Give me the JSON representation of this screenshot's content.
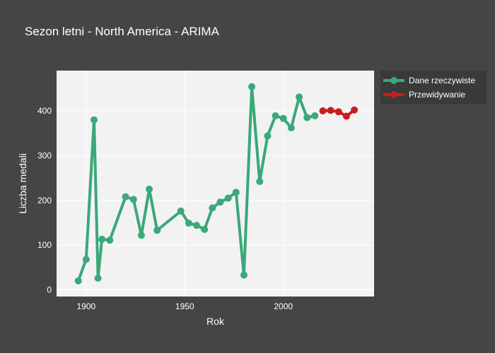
{
  "chart_data": {
    "type": "line",
    "title": "Sezon letni - North America - ARIMA",
    "xlabel": "Rok",
    "ylabel": "Liczba medali",
    "xlim": [
      1885,
      2046
    ],
    "ylim": [
      -15,
      490
    ],
    "x_ticks": [
      1900,
      1950,
      2000
    ],
    "y_ticks": [
      0,
      100,
      200,
      300,
      400
    ],
    "grid": true,
    "legend_position": "top-right",
    "series": [
      {
        "name": "Dane rzeczywiste",
        "color": "#3aa87a",
        "x": [
          1896,
          1900,
          1904,
          1906,
          1908,
          1912,
          1920,
          1924,
          1928,
          1932,
          1936,
          1948,
          1952,
          1956,
          1960,
          1964,
          1968,
          1972,
          1976,
          1980,
          1984,
          1988,
          1992,
          1996,
          2000,
          2004,
          2008,
          2012,
          2016
        ],
        "y": [
          20,
          68,
          380,
          26,
          113,
          111,
          208,
          202,
          122,
          225,
          133,
          176,
          149,
          144,
          135,
          183,
          196,
          205,
          218,
          33,
          454,
          242,
          344,
          389,
          383,
          362,
          431,
          385,
          389
        ]
      },
      {
        "name": "Przewidywanie",
        "color": "#c81e1e",
        "x": [
          2020,
          2024,
          2028,
          2032,
          2036
        ],
        "y": [
          400,
          401,
          398,
          388,
          402
        ]
      }
    ]
  }
}
